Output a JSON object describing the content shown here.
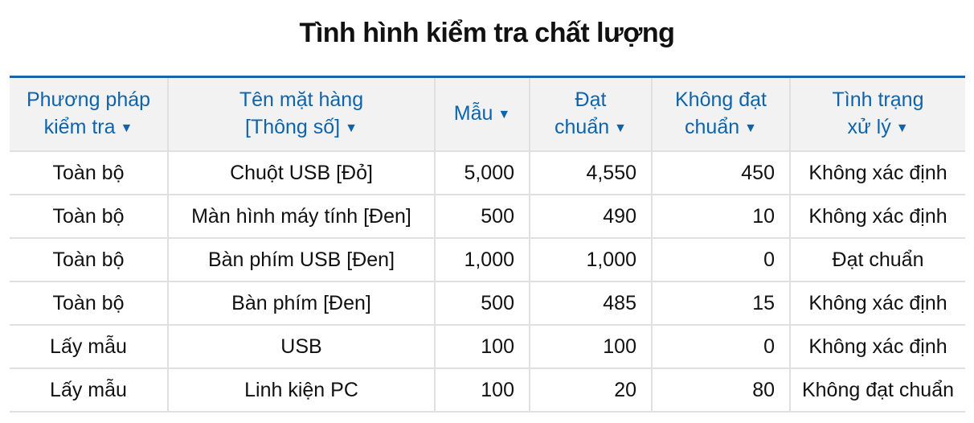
{
  "title": "Tình hình kiểm tra chất lượng",
  "columns": [
    {
      "label": "Phương pháp kiểm tra",
      "icon": "triangle-down-icon"
    },
    {
      "label": "Tên mặt hàng [Thông số]",
      "icon": "triangle-down-icon"
    },
    {
      "label": "Mẫu",
      "icon": "triangle-down-icon"
    },
    {
      "label": "Đạt chuẩn",
      "icon": "triangle-down-icon"
    },
    {
      "label": "Không đạt chuẩn",
      "icon": "triangle-down-icon"
    },
    {
      "label": "Tình trạng xử lý",
      "icon": "triangle-down-icon"
    }
  ],
  "rows": [
    [
      "Toàn bộ",
      "Chuột USB [Đỏ]",
      "5,000",
      "4,550",
      "450",
      "Không xác định"
    ],
    [
      "Toàn bộ",
      "Màn hình máy tính [Đen]",
      "500",
      "490",
      "10",
      "Không xác định"
    ],
    [
      "Toàn bộ",
      "Bàn phím USB [Đen]",
      "1,000",
      "1,000",
      "0",
      "Đạt chuẩn"
    ],
    [
      "Toàn bộ",
      "Bàn phím [Đen]",
      "500",
      "485",
      "15",
      "Không xác định"
    ],
    [
      "Lấy mẫu",
      "USB",
      "100",
      "100",
      "0",
      "Không xác định"
    ],
    [
      "Lấy mẫu",
      "Linh kiện PC",
      "100",
      "20",
      "80",
      "Không đạt chuẩn"
    ]
  ],
  "colors": {
    "header_text": "#0e64ac",
    "header_bg": "#f2f2f2",
    "top_border": "#1a64a8"
  }
}
